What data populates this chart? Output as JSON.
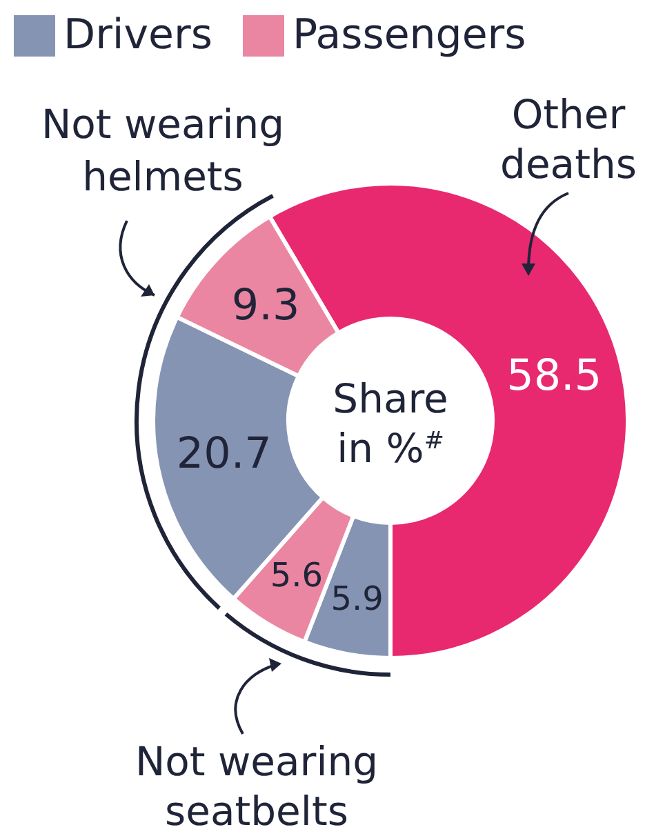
{
  "chart_data": {
    "type": "donut",
    "categories": [
      "Other deaths",
      "Drivers",
      "Passengers",
      null,
      null
    ],
    "values": [
      58.5,
      5.9,
      5.6,
      20.7,
      9.3
    ],
    "colors": [
      "#e8296f",
      "#8694b4",
      "#ea86a2",
      "#8694b4",
      "#ea86a2"
    ],
    "data_labels": true,
    "legend": "top left",
    "annotations": [
      "Not wearing helmets",
      "Not wearing seatbelts",
      "Share in %$^{#}$"
    ]
  }
}
